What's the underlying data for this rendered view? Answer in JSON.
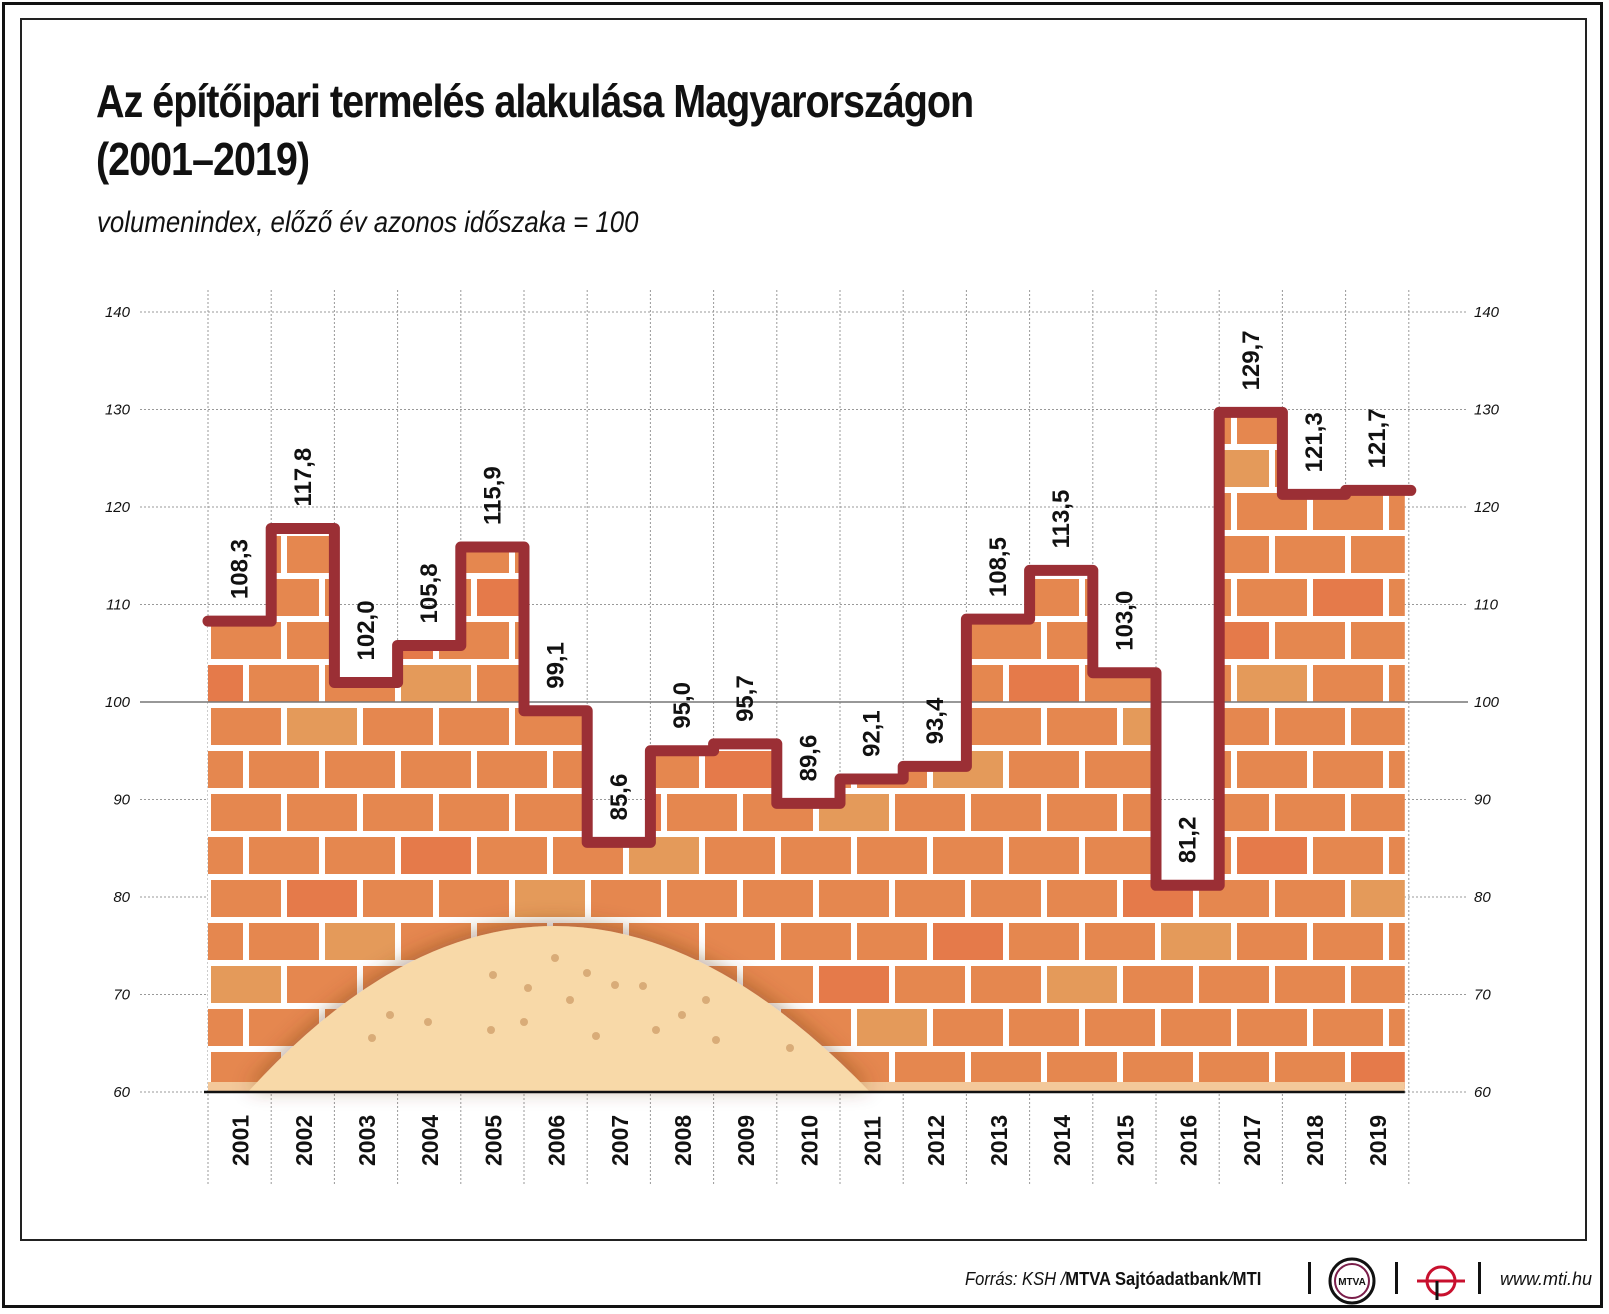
{
  "title": "Az építőipari termelés alakulása Magyarországon\n(2001–2019)",
  "subtitle": "volumenindex, előző év azonos időszaka = 100",
  "footer": {
    "source_prefix": "Forrás: KSH / ",
    "source_bold": "MTVA Sajtóadatbank",
    "source_sep": " / ",
    "source_mti": "MTI",
    "logo_text": "MTVA",
    "url": "www.mti.hu"
  },
  "colors": {
    "line": "#9b2f35",
    "brick": "#e5874f",
    "brick_alt": "#e49a5a",
    "mortar": "#ffffff",
    "sand": "#f8d9a8",
    "grid": "#999999"
  },
  "chart_data": {
    "type": "step-line",
    "x": [
      "2001",
      "2002",
      "2003",
      "2004",
      "2005",
      "2006",
      "2007",
      "2008",
      "2009",
      "2010",
      "2011",
      "2012",
      "2013",
      "2014",
      "2015",
      "2016",
      "2017",
      "2018",
      "2019"
    ],
    "values": [
      108.3,
      117.8,
      102.0,
      105.8,
      115.9,
      99.1,
      85.6,
      95.0,
      95.7,
      89.6,
      92.1,
      93.4,
      108.5,
      113.5,
      103.0,
      81.2,
      129.7,
      121.3,
      121.7
    ],
    "value_labels": [
      "108,3",
      "117,8",
      "102,0",
      "105,8",
      "115,9",
      "99,1",
      "85,6",
      "95,0",
      "95,7",
      "89,6",
      "92,1",
      "93,4",
      "108,5",
      "113,5",
      "103,0",
      "81,2",
      "129,7",
      "121,3",
      "121,7"
    ],
    "ylim": [
      60,
      140
    ],
    "yticks": [
      60,
      70,
      80,
      90,
      100,
      110,
      120,
      130,
      140
    ],
    "ytick_labels": [
      "60",
      "70",
      "80",
      "90",
      "100",
      "110",
      "120",
      "130",
      "140"
    ],
    "reference_line": 100,
    "y_axis_both_sides": true,
    "grid": true
  }
}
